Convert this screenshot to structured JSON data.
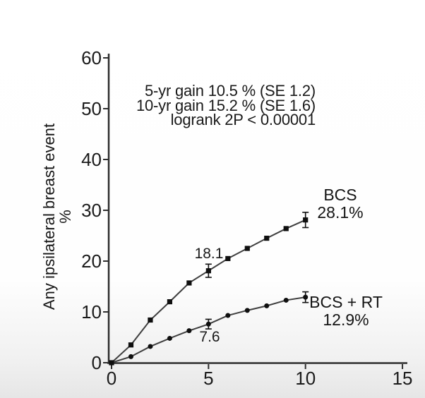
{
  "chart_data": {
    "type": "line",
    "title": "",
    "ylabel": "Any ipsilateral breast event",
    "ylabel_unit": "%",
    "xlabel": "",
    "x": [
      0,
      1,
      2,
      3,
      4,
      5,
      6,
      7,
      8,
      9,
      10
    ],
    "series": [
      {
        "name": "BCS",
        "marker": "square",
        "values": [
          0,
          3.5,
          8.4,
          12.0,
          15.7,
          18.1,
          20.5,
          22.5,
          24.5,
          26.4,
          28.1
        ],
        "end_label": "BCS",
        "end_value_label": "28.1%"
      },
      {
        "name": "BCS + RT",
        "marker": "circle",
        "values": [
          0,
          1.2,
          3.2,
          4.8,
          6.3,
          7.6,
          9.3,
          10.3,
          11.2,
          12.3,
          12.9
        ],
        "end_label": "BCS + RT",
        "end_value_label": "12.9%"
      }
    ],
    "error_bars": [
      {
        "series": 0,
        "x": 5,
        "y": 18.1,
        "se": 1.3
      },
      {
        "series": 0,
        "x": 10,
        "y": 28.1,
        "se": 1.5
      },
      {
        "series": 1,
        "x": 5,
        "y": 7.6,
        "se": 0.95
      },
      {
        "series": 1,
        "x": 10,
        "y": 12.9,
        "se": 1.05
      }
    ],
    "point_labels": [
      {
        "text": "18.1",
        "series": 0,
        "x": 5
      },
      {
        "text": "7.6",
        "series": 1,
        "x": 5
      }
    ],
    "annotations": [
      "5-yr gain 10.5 % (SE 1.2)",
      "10-yr gain 15.2 % (SE 1.6)",
      "logrank 2P < 0.00001"
    ],
    "x_ticks": [
      0,
      5,
      10,
      15
    ],
    "y_ticks": [
      0,
      10,
      20,
      30,
      40,
      50,
      60
    ],
    "xlim": [
      0,
      15.3
    ],
    "ylim": [
      0,
      60
    ],
    "legend_position": "end-of-line",
    "grid": false,
    "colors": {
      "axis": "#2e2e2e",
      "line": "#3f3f3f",
      "marker": "#0f0f0f",
      "text": "#1b1b1b"
    }
  }
}
